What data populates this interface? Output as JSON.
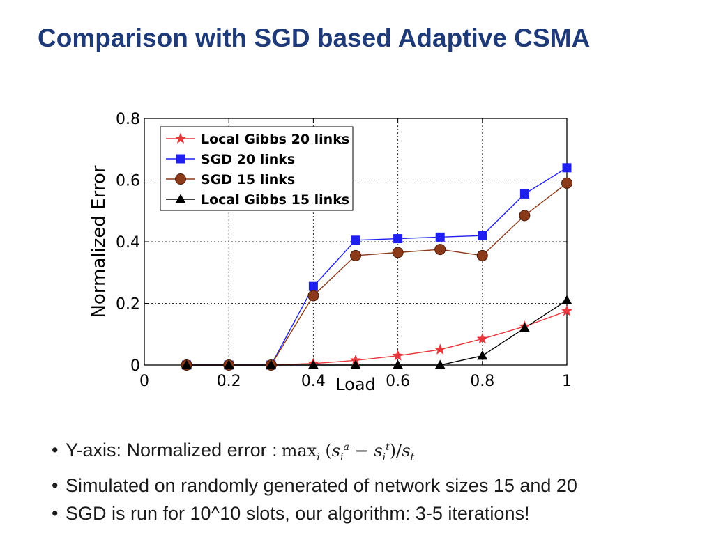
{
  "slide": {
    "title": "Comparison with SGD based Adaptive CSMA"
  },
  "bullets": [
    {
      "text": "Y-axis:  Normalized error :",
      "formula": "max_i (s_i^a − s_i^t)/s_t"
    },
    {
      "text": "Simulated on randomly generated of network sizes 15 and 20"
    },
    {
      "text": "SGD is run for 10^10 slots, our algorithm: 3-5 iterations!"
    }
  ],
  "formula_parts": {
    "max": "max",
    "i": "i",
    "s": "s",
    "a": "a",
    "t": "t",
    "minus": "−",
    "open": "(",
    "close": ")",
    "slash": "/"
  },
  "chart_data": {
    "type": "line",
    "title": "",
    "xlabel": "Load",
    "ylabel": "Normalized Error",
    "xlim": [
      0,
      1
    ],
    "ylim": [
      0,
      0.8
    ],
    "xticks": [
      0,
      0.2,
      0.4,
      0.6,
      0.8,
      1
    ],
    "xtick_labels": [
      "0",
      "0.2",
      "0.4",
      "0.6",
      "0.8",
      "1"
    ],
    "yticks": [
      0,
      0.2,
      0.4,
      0.6,
      0.8
    ],
    "ytick_labels": [
      "0",
      "0.2",
      "0.4",
      "0.6",
      "0.8"
    ],
    "grid": true,
    "legend_position": "top-left",
    "x": [
      0.1,
      0.2,
      0.3,
      0.4,
      0.5,
      0.6,
      0.7,
      0.8,
      0.9,
      1.0
    ],
    "series": [
      {
        "name": "Local Gibbs 20 links",
        "marker": "star",
        "color": "#e8363c",
        "values": [
          0,
          0,
          0,
          0.005,
          0.015,
          0.03,
          0.05,
          0.085,
          0.125,
          0.175
        ]
      },
      {
        "name": "SGD 20 links",
        "marker": "square",
        "color": "#1f1ff0",
        "values": [
          0,
          0,
          0,
          0.255,
          0.405,
          0.41,
          0.415,
          0.42,
          0.555,
          0.64
        ]
      },
      {
        "name": "SGD 15 links",
        "marker": "circle",
        "color": "#8b3a1a",
        "values": [
          0,
          0,
          0,
          0.225,
          0.355,
          0.365,
          0.375,
          0.355,
          0.485,
          0.59
        ]
      },
      {
        "name": "Local Gibbs 15 links",
        "marker": "triangle",
        "color": "#000000",
        "values": [
          0,
          0,
          0,
          0,
          0,
          0,
          0,
          0.03,
          0.12,
          0.21
        ]
      }
    ]
  }
}
